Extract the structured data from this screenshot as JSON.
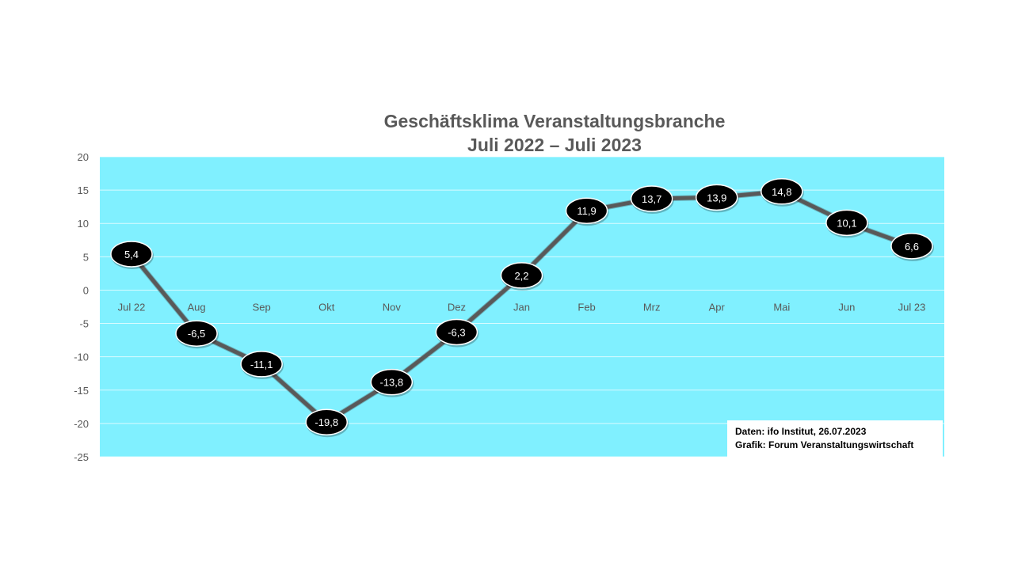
{
  "chart_data": {
    "type": "line",
    "title": [
      "Geschäftsklima Veranstaltungsbranche",
      "Juli 2022 – Juli 2023"
    ],
    "categories": [
      "Jul 22",
      "Aug",
      "Sep",
      "Okt",
      "Nov",
      "Dez",
      "Jan",
      "Feb",
      "Mrz",
      "Apr",
      "Mai",
      "Jun",
      "Jul 23"
    ],
    "values": [
      5.4,
      -6.5,
      -11.1,
      -19.8,
      -13.8,
      -6.3,
      2.2,
      11.9,
      13.7,
      13.9,
      14.8,
      10.1,
      6.6
    ],
    "data_labels": [
      "5,4",
      "-6,5",
      "-11,1",
      "-19,8",
      "-13,8",
      "-6,3",
      "2,2",
      "11,9",
      "13,7",
      "13,9",
      "14,8",
      "10,1",
      "6,6"
    ],
    "ylim": [
      -25,
      20
    ],
    "yticks": [
      20,
      15,
      10,
      5,
      0,
      -5,
      -10,
      -15,
      -20,
      -25
    ],
    "grid": true,
    "line_color": "#595959",
    "plot_background": "#80F0FF",
    "marker_color": "#000000"
  },
  "source": {
    "line1": "Daten: ifo Institut, 26.07.2023",
    "line2": "Grafik: Forum Veranstaltungswirtschaft"
  }
}
